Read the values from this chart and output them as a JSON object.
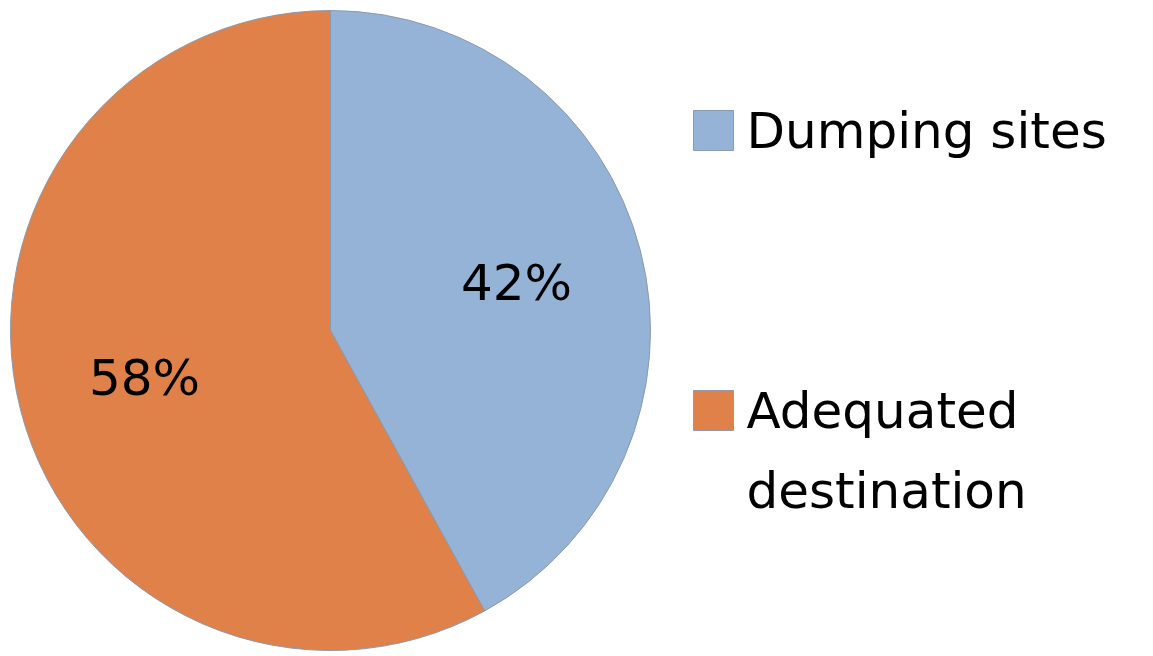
{
  "chart_data": {
    "type": "pie",
    "categories": [
      "Dumping sites",
      "Adequated destination"
    ],
    "values": [
      42,
      58
    ],
    "colors": [
      "#95b3d7",
      "#df8148"
    ],
    "value_labels": [
      "42%",
      "58%"
    ],
    "legend": "right"
  }
}
